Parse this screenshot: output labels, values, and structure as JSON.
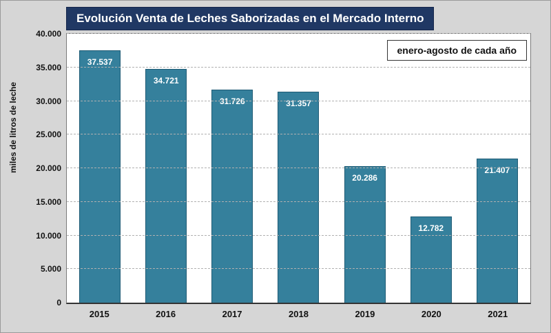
{
  "chart_data": {
    "type": "bar",
    "title": "Evolución Venta de Leches Saborizadas en el Mercado Interno",
    "annotation": "enero-agosto de cada año",
    "ylabel": "miles de litros de leche",
    "xlabel": "",
    "categories": [
      "2015",
      "2016",
      "2017",
      "2018",
      "2019",
      "2020",
      "2021"
    ],
    "values": [
      37537,
      34721,
      31726,
      31357,
      20286,
      12782,
      21407
    ],
    "value_labels": [
      "37.537",
      "34.721",
      "31.726",
      "31.357",
      "20.286",
      "12.782",
      "21.407"
    ],
    "ylim": [
      0,
      40000
    ],
    "ytick_step": 5000,
    "ytick_labels": [
      "0",
      "5.000",
      "10.000",
      "15.000",
      "20.000",
      "25.000",
      "30.000",
      "35.000",
      "40.000"
    ],
    "grid": "dashed-horizontal",
    "legend_position": "top-right",
    "colors": {
      "bar_fill": "#35809c",
      "bar_border": "#1d5a74",
      "title_bg": "#203864",
      "title_text": "#ffffff",
      "page_bg": "#d6d6d6",
      "plot_bg": "#ffffff"
    }
  }
}
